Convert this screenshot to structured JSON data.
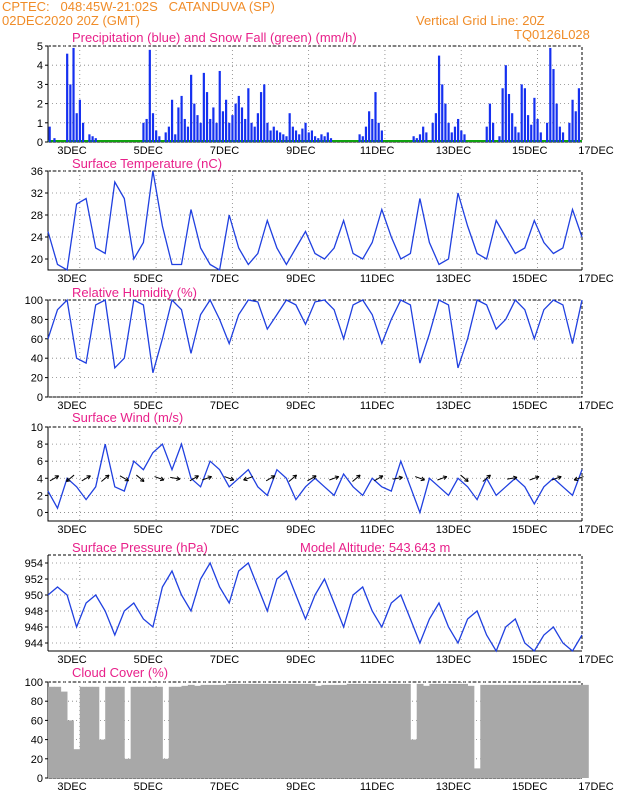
{
  "header": {
    "line1": "CPTEC:   048:45W-21:02S   CATANDUVA (SP)",
    "line2": "02DEC2020 20Z (GMT)",
    "grid_note": "Vertical Grid Line: 20Z",
    "code": "TQ0126L028"
  },
  "colors": {
    "header": "#f08c28",
    "title": "#e8208a",
    "line": "#2040e0",
    "precip": "#1530f0",
    "snow": "#10a010",
    "cloud": "#a8a8a8",
    "wind_arrow": "#000000"
  },
  "x_axis": {
    "hours_start": 0,
    "hours_end": 336,
    "tick_labels": [
      "3DEC",
      "5DEC",
      "7DEC",
      "9DEC",
      "11DEC",
      "13DEC",
      "15DEC",
      "17DEC"
    ],
    "tick_hours": [
      28,
      76,
      124,
      172,
      220,
      268,
      316,
      364
    ]
  },
  "panels": [
    {
      "id": "precip",
      "title": "Precipitation (blue) and Snow Fall (green) (mm/h)",
      "ylim": [
        0,
        5
      ],
      "yticks": [
        0,
        1,
        2,
        3,
        4,
        5
      ]
    },
    {
      "id": "temp",
      "title": "Surface Temperature (nC)",
      "ylim": [
        18,
        36
      ],
      "yticks": [
        20,
        24,
        28,
        32,
        36
      ]
    },
    {
      "id": "rh",
      "title": "Relative Humidity (%)",
      "ylim": [
        0,
        100
      ],
      "yticks": [
        0,
        20,
        40,
        60,
        80,
        100
      ]
    },
    {
      "id": "wind",
      "title": "Surface Wind (m/s)",
      "title2": "",
      "ylim": [
        -1,
        10
      ],
      "yticks": [
        0,
        2,
        4,
        6,
        8,
        10
      ]
    },
    {
      "id": "pres",
      "title": "Surface Pressure (hPa)",
      "title2": "Model Altitude: 543.643 m",
      "ylim": [
        943,
        955
      ],
      "yticks": [
        944,
        946,
        948,
        950,
        952,
        954
      ]
    },
    {
      "id": "cloud",
      "title": "Cloud Cover (%)",
      "ylim": [
        0,
        100
      ],
      "yticks": [
        0,
        20,
        40,
        60,
        80,
        100
      ]
    }
  ],
  "chart_data": [
    {
      "type": "bar",
      "title": "Precipitation (blue) and Snow Fall (green) (mm/h)",
      "ylim": [
        0,
        5
      ],
      "x": [
        1,
        4,
        12,
        14,
        16,
        18,
        20,
        22,
        26,
        28,
        30,
        60,
        62,
        64,
        66,
        68,
        70,
        74,
        76,
        78,
        80,
        82,
        84,
        86,
        88,
        90,
        92,
        94,
        96,
        98,
        100,
        102,
        104,
        106,
        108,
        110,
        112,
        114,
        116,
        118,
        120,
        122,
        124,
        126,
        128,
        130,
        132,
        134,
        136,
        138,
        140,
        142,
        144,
        146,
        148,
        150,
        152,
        154,
        156,
        158,
        160,
        162,
        164,
        166,
        168,
        170,
        172,
        174,
        176,
        178,
        196,
        198,
        200,
        202,
        204,
        206,
        208,
        210,
        230,
        232,
        234,
        236,
        238,
        242,
        244,
        246,
        248,
        250,
        252,
        254,
        256,
        258,
        260,
        262,
        276,
        278,
        280,
        284,
        286,
        288,
        290,
        292,
        294,
        296,
        298,
        300,
        302,
        304,
        306,
        308,
        310,
        314,
        316,
        318,
        320,
        322,
        324,
        328,
        330,
        332,
        334
      ],
      "precip": [
        0.8,
        0.2,
        4.6,
        3.0,
        4.9,
        1.5,
        2.2,
        1.0,
        0.4,
        0.3,
        0.2,
        1.0,
        1.2,
        4.8,
        1.5,
        0.6,
        0.3,
        0.5,
        0.8,
        2.2,
        0.4,
        1.8,
        2.4,
        1.2,
        0.8,
        3.5,
        2.0,
        1.4,
        1.0,
        3.6,
        2.6,
        1.2,
        1.8,
        1.0,
        3.7,
        1.6,
        2.2,
        1.0,
        1.4,
        2.0,
        2.4,
        1.8,
        1.2,
        2.8,
        1.0,
        0.8,
        1.5,
        2.6,
        3.0,
        1.0,
        0.6,
        0.8,
        0.6,
        0.5,
        0.4,
        0.3,
        1.5,
        0.8,
        0.6,
        0.4,
        0.7,
        1.0,
        0.5,
        0.6,
        0.3,
        0.2,
        0.4,
        0.3,
        0.5,
        0.2,
        0.4,
        0.3,
        0.8,
        1.6,
        1.2,
        2.6,
        1.0,
        0.6,
        0.3,
        0.2,
        0.4,
        0.8,
        0.5,
        1.0,
        1.5,
        4.5,
        3.0,
        2.0,
        1.0,
        0.5,
        0.8,
        1.2,
        0.6,
        0.4,
        0.8,
        2.0,
        1.0,
        0.3,
        2.8,
        4.0,
        2.5,
        1.5,
        0.8,
        0.5,
        3.0,
        2.8,
        1.4,
        0.9,
        2.3,
        1.2,
        0.5,
        1.0,
        4.9,
        3.8,
        2.0,
        0.8,
        0.5,
        1.0,
        2.2,
        1.6,
        2.8,
        0.8
      ],
      "snow": "0 throughout"
    },
    {
      "type": "line",
      "title": "Surface Temperature (nC)",
      "ylim": [
        18,
        36
      ],
      "x": [
        0,
        6,
        12,
        18,
        24,
        30,
        36,
        42,
        48,
        54,
        60,
        66,
        72,
        78,
        84,
        90,
        96,
        102,
        108,
        114,
        120,
        126,
        132,
        138,
        144,
        150,
        156,
        162,
        168,
        174,
        180,
        186,
        192,
        198,
        204,
        210,
        216,
        222,
        228,
        234,
        240,
        246,
        252,
        258,
        264,
        270,
        276,
        282,
        288,
        294,
        300,
        306,
        312,
        318,
        324,
        330,
        336
      ],
      "y": [
        25,
        19,
        18,
        30,
        31,
        22,
        21,
        34,
        31,
        20,
        23,
        36,
        26,
        19,
        19,
        29,
        22,
        19,
        18,
        28,
        22,
        19,
        21,
        27,
        22,
        19,
        22,
        25,
        21,
        20,
        22,
        27,
        21,
        20,
        23,
        29,
        24,
        20,
        21,
        31,
        23,
        19,
        20,
        32,
        26,
        21,
        20,
        27,
        24,
        21,
        22,
        27,
        23,
        21,
        22,
        29,
        24
      ]
    },
    {
      "type": "line",
      "title": "Relative Humidity (%)",
      "ylim": [
        0,
        100
      ],
      "x": [
        0,
        6,
        12,
        18,
        24,
        30,
        36,
        42,
        48,
        54,
        60,
        66,
        72,
        78,
        84,
        90,
        96,
        102,
        108,
        114,
        120,
        126,
        132,
        138,
        144,
        150,
        156,
        162,
        168,
        174,
        180,
        186,
        192,
        198,
        204,
        210,
        216,
        222,
        228,
        234,
        240,
        246,
        252,
        258,
        264,
        270,
        276,
        282,
        288,
        294,
        300,
        306,
        312,
        318,
        324,
        330,
        336
      ],
      "y": [
        60,
        90,
        100,
        40,
        35,
        95,
        100,
        30,
        40,
        100,
        95,
        25,
        60,
        100,
        90,
        45,
        85,
        100,
        80,
        55,
        85,
        100,
        98,
        70,
        85,
        100,
        95,
        75,
        98,
        100,
        90,
        60,
        95,
        100,
        85,
        55,
        80,
        100,
        95,
        35,
        65,
        100,
        95,
        30,
        60,
        100,
        95,
        70,
        80,
        100,
        90,
        60,
        90,
        100,
        95,
        55,
        100
      ]
    },
    {
      "type": "line",
      "title": "Surface Wind (m/s)",
      "ylim": [
        -1,
        10
      ],
      "x": [
        0,
        6,
        12,
        18,
        24,
        30,
        36,
        42,
        48,
        54,
        60,
        66,
        72,
        78,
        84,
        90,
        96,
        102,
        108,
        114,
        120,
        126,
        132,
        138,
        144,
        150,
        156,
        162,
        168,
        174,
        180,
        186,
        192,
        198,
        204,
        210,
        216,
        222,
        228,
        234,
        240,
        246,
        252,
        258,
        264,
        270,
        276,
        282,
        288,
        294,
        300,
        306,
        312,
        318,
        324,
        330,
        336
      ],
      "y": [
        2.5,
        0.5,
        4,
        3,
        1.5,
        3,
        8,
        3,
        2.5,
        6,
        5,
        7,
        8,
        5,
        8,
        4,
        3,
        6,
        5,
        3,
        4,
        5,
        3,
        2,
        5,
        4,
        1.5,
        3,
        4,
        3,
        2,
        4.5,
        3,
        2,
        4,
        3,
        2.5,
        6,
        3,
        0,
        4,
        3,
        2,
        4,
        3,
        1.5,
        4,
        2,
        3,
        4,
        3,
        1,
        3,
        4,
        3,
        2,
        5
      ],
      "arrows": {
        "x": [
          4,
          14,
          24,
          36,
          48,
          58,
          70,
          80,
          92,
          100,
          114,
          126,
          140,
          154,
          166,
          180,
          194,
          208,
          220,
          234,
          248,
          262,
          276,
          292,
          306,
          320,
          334
        ],
        "dir_deg": [
          30,
          220,
          30,
          40,
          330,
          320,
          340,
          350,
          30,
          20,
          340,
          200,
          30,
          40,
          30,
          20,
          40,
          30,
          10,
          340,
          20,
          320,
          40,
          10,
          20,
          20,
          200
        ]
      }
    },
    {
      "type": "line",
      "title": "Surface Pressure (hPa)",
      "ylim": [
        943,
        955
      ],
      "x": [
        0,
        6,
        12,
        18,
        24,
        30,
        36,
        42,
        48,
        54,
        60,
        66,
        72,
        78,
        84,
        90,
        96,
        102,
        108,
        114,
        120,
        126,
        132,
        138,
        144,
        150,
        156,
        162,
        168,
        174,
        180,
        186,
        192,
        198,
        204,
        210,
        216,
        222,
        228,
        234,
        240,
        246,
        252,
        258,
        264,
        270,
        276,
        282,
        288,
        294,
        300,
        306,
        312,
        318,
        324,
        330,
        336
      ],
      "y": [
        950,
        951,
        950,
        946,
        949,
        950,
        948,
        945,
        948,
        949,
        947,
        946,
        951,
        953,
        950,
        948,
        952,
        954,
        951,
        949,
        953,
        954,
        951,
        948,
        952,
        953,
        950,
        947,
        950,
        952,
        949,
        946,
        950,
        951,
        948,
        946,
        949,
        950,
        947,
        944,
        947,
        949,
        946,
        944,
        947,
        948,
        945,
        943,
        946,
        947,
        944,
        943,
        945,
        946,
        944,
        943,
        945
      ]
    },
    {
      "type": "area",
      "title": "Cloud Cover (%)",
      "ylim": [
        0,
        100
      ],
      "x": [
        0,
        4,
        8,
        12,
        16,
        20,
        24,
        28,
        32,
        36,
        40,
        44,
        48,
        52,
        56,
        60,
        64,
        68,
        72,
        76,
        80,
        84,
        88,
        92,
        96,
        100,
        104,
        108,
        112,
        116,
        120,
        124,
        128,
        132,
        136,
        140,
        144,
        148,
        152,
        156,
        160,
        164,
        168,
        172,
        176,
        180,
        184,
        188,
        192,
        196,
        200,
        204,
        208,
        212,
        216,
        220,
        224,
        228,
        232,
        236,
        240,
        244,
        248,
        252,
        256,
        260,
        264,
        268,
        272,
        276,
        280,
        284,
        288,
        292,
        296,
        300,
        304,
        308,
        312,
        316,
        320,
        324,
        328,
        332,
        336
      ],
      "y": [
        95,
        95,
        90,
        60,
        30,
        95,
        95,
        95,
        40,
        95,
        95,
        95,
        20,
        95,
        95,
        95,
        95,
        95,
        20,
        95,
        95,
        96,
        97,
        96,
        97,
        97,
        97,
        97,
        98,
        98,
        98,
        98,
        98,
        98,
        98,
        98,
        98,
        98,
        98,
        98,
        98,
        98,
        96,
        97,
        97,
        97,
        97,
        98,
        98,
        98,
        98,
        98,
        98,
        98,
        98,
        98,
        98,
        40,
        98,
        96,
        98,
        98,
        98,
        98,
        98,
        98,
        96,
        10,
        97,
        97,
        97,
        97,
        97,
        97,
        97,
        97,
        97,
        97,
        97,
        97,
        97,
        97,
        97,
        97,
        97
      ]
    }
  ]
}
